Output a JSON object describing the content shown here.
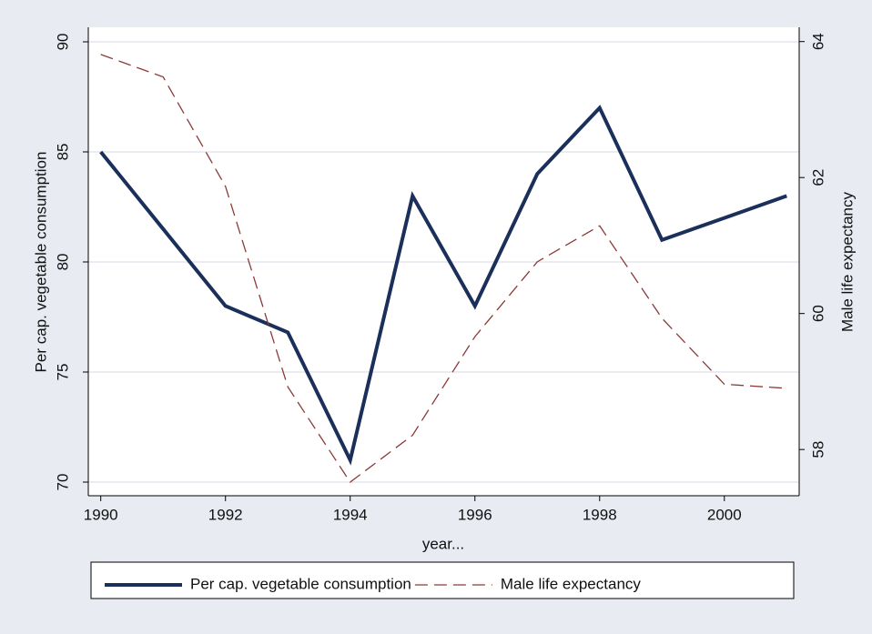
{
  "chart_data": {
    "type": "line",
    "x": [
      1990,
      1991,
      1992,
      1993,
      1994,
      1995,
      1996,
      1997,
      1998,
      1999,
      2000,
      2001
    ],
    "xlim": [
      1989.8,
      2001.2
    ],
    "xticks": [
      1990,
      1992,
      1994,
      1996,
      1998,
      2000
    ],
    "xlabel": "year...",
    "ylabel": "Per cap. vegetable consumption",
    "y2label": "Male life expectancy",
    "ylim": [
      69.38,
      90.66
    ],
    "yticks": [
      70,
      75,
      80,
      85,
      90
    ],
    "y2lim": [
      57.32,
      64.21
    ],
    "y2ticks": [
      58,
      60,
      62,
      64
    ],
    "grid": true,
    "legend": "bottom",
    "series": [
      {
        "name": "Per cap. vegetable consumption",
        "color": "#1a2f5a",
        "values": [
          85,
          81.5,
          78,
          76.8,
          71,
          83,
          78,
          84,
          87,
          81,
          82,
          83
        ]
      },
      {
        "name": "Male life expectancy",
        "color": "#8b3a3a",
        "axis": "y2",
        "dash": true,
        "values": [
          63.81,
          63.48,
          61.87,
          58.92,
          57.52,
          58.21,
          59.66,
          60.76,
          61.29,
          59.93,
          58.96,
          58.9
        ]
      }
    ]
  }
}
